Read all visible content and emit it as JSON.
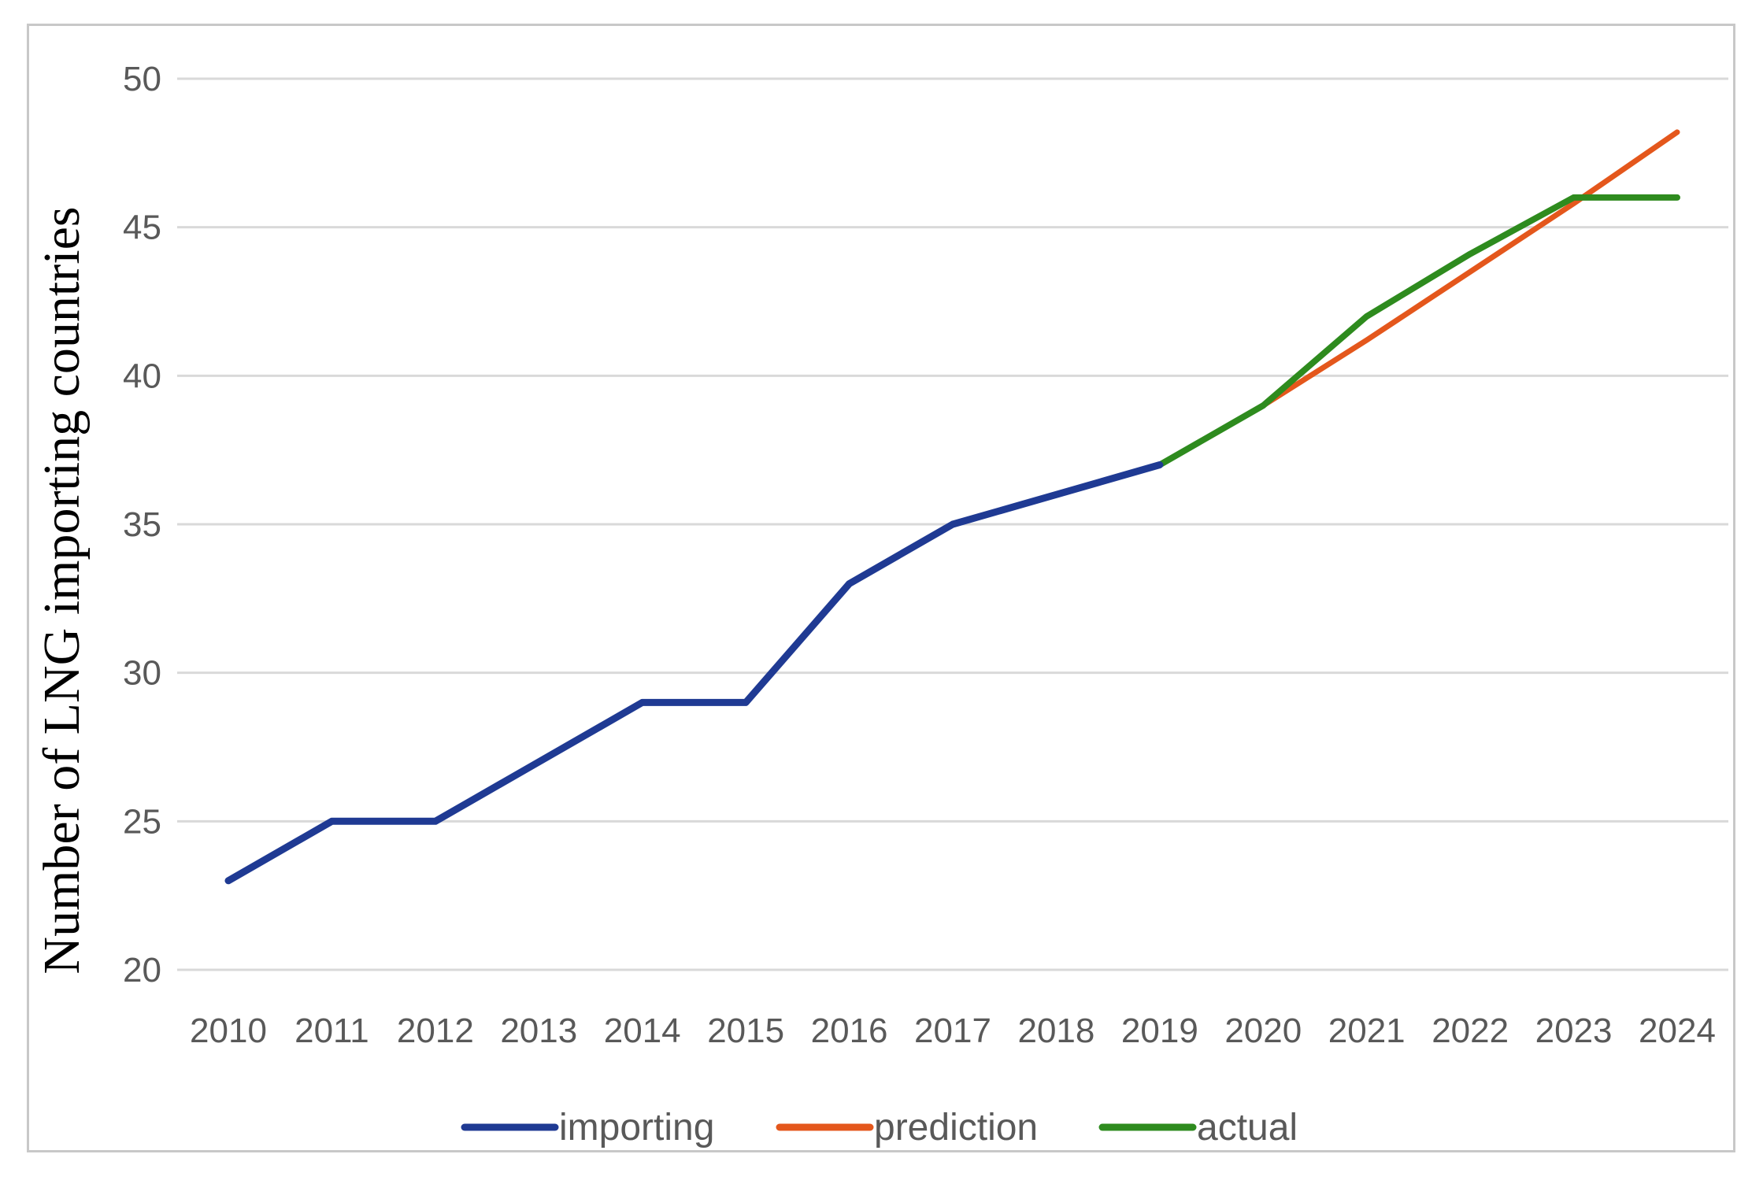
{
  "chart_data": {
    "type": "line",
    "title": "",
    "xlabel": "",
    "ylabel": "Number of LNG importing countries",
    "x": [
      "2010",
      "2011",
      "2012",
      "2013",
      "2014",
      "2015",
      "2016",
      "2017",
      "2018",
      "2019",
      "2020",
      "2021",
      "2022",
      "2023",
      "2024"
    ],
    "ylim": [
      20,
      50
    ],
    "yticks": [
      20,
      25,
      30,
      35,
      40,
      45,
      50
    ],
    "grid": true,
    "legend_position": "bottom",
    "series": [
      {
        "name": "importing",
        "color": "#1f3a93",
        "points": [
          [
            0,
            23
          ],
          [
            1,
            25
          ],
          [
            2,
            25
          ],
          [
            3,
            27
          ],
          [
            4,
            29
          ],
          [
            5,
            29
          ],
          [
            6,
            33
          ],
          [
            7,
            35
          ],
          [
            8,
            36
          ],
          [
            9,
            37
          ]
        ]
      },
      {
        "name": "prediction",
        "color": "#e4571c",
        "points": [
          [
            9,
            37
          ],
          [
            10,
            39
          ],
          [
            11,
            41.2
          ],
          [
            12,
            43.5
          ],
          [
            13,
            45.8
          ],
          [
            14,
            48.2
          ]
        ]
      },
      {
        "name": "actual",
        "color": "#2e8b1e",
        "points": [
          [
            9,
            37
          ],
          [
            10,
            39
          ],
          [
            11,
            42
          ],
          [
            12,
            44.1
          ],
          [
            13,
            46
          ],
          [
            14,
            46
          ]
        ]
      }
    ]
  }
}
